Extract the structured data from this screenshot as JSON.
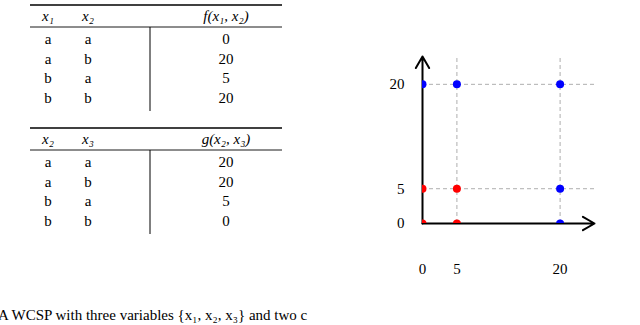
{
  "tables": [
    {
      "headers": [
        "x₁",
        "x₂",
        "f(x₁, x₂)"
      ],
      "rows": [
        [
          "a",
          "a",
          0
        ],
        [
          "a",
          "b",
          20
        ],
        [
          "b",
          "a",
          5
        ],
        [
          "b",
          "b",
          20
        ]
      ]
    },
    {
      "headers": [
        "x₂",
        "x₃",
        "g(x₂, x₃)"
      ],
      "rows": [
        [
          "a",
          "a",
          20
        ],
        [
          "a",
          "b",
          20
        ],
        [
          "b",
          "a",
          5
        ],
        [
          "b",
          "b",
          0
        ]
      ]
    }
  ],
  "chart_data": {
    "type": "scatter",
    "series": [
      {
        "color": "#ff0000",
        "x": [
          0,
          5,
          0,
          5
        ],
        "values": [
          0,
          0,
          5,
          5
        ]
      },
      {
        "color": "#0000ff",
        "x": [
          0,
          5,
          20,
          20,
          20
        ],
        "values": [
          20,
          20,
          20,
          5,
          0
        ]
      }
    ],
    "xlim": [
      0,
      25
    ],
    "ylim": [
      0,
      24
    ],
    "xticks": [
      0,
      5,
      20
    ],
    "yticks": [
      0,
      5,
      20
    ],
    "grid": true
  },
  "caption": "A WCSP with three variables {x₁, x₂, x₃} and two c"
}
